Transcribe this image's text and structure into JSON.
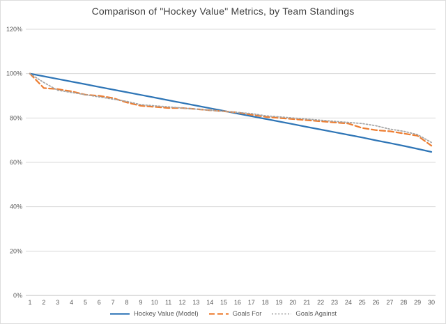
{
  "chart_data": {
    "type": "line",
    "title": "Comparison of \"Hockey Value\" Metrics, by Team Standings",
    "xlabel": "",
    "ylabel": "",
    "x": [
      1,
      2,
      3,
      4,
      5,
      6,
      7,
      8,
      9,
      10,
      11,
      12,
      13,
      14,
      15,
      16,
      17,
      18,
      19,
      20,
      21,
      22,
      23,
      24,
      25,
      26,
      27,
      28,
      29,
      30
    ],
    "ylim": [
      0,
      120
    ],
    "grid": true,
    "legend_position": "bottom",
    "grid_color": "#d9d9d9",
    "axis_color": "#bfbfbf",
    "tick_color": "#595959",
    "yticks": [
      {
        "value": 0,
        "label": "0%"
      },
      {
        "value": 20,
        "label": "20%"
      },
      {
        "value": 40,
        "label": "40%"
      },
      {
        "value": 60,
        "label": "60%"
      },
      {
        "value": 80,
        "label": "80%"
      },
      {
        "value": 100,
        "label": "100%"
      },
      {
        "value": 120,
        "label": "120%"
      }
    ],
    "series": [
      {
        "name": "Hockey Value (Model)",
        "color": "#2e75b6",
        "style": "solid",
        "width": 2.25,
        "values": [
          100,
          98.8,
          97.6,
          96.4,
          95.2,
          94.0,
          92.8,
          91.6,
          90.4,
          89.2,
          88.0,
          86.8,
          85.6,
          84.4,
          83.2,
          82.0,
          80.8,
          79.6,
          78.4,
          77.2,
          76.0,
          74.8,
          73.6,
          72.4,
          71.2,
          69.9,
          68.7,
          67.4,
          66.1,
          64.7
        ]
      },
      {
        "name": "Goals For",
        "color": "#ed7d31",
        "style": "dashed",
        "width": 2.25,
        "values": [
          100,
          93.5,
          93.0,
          92.0,
          90.5,
          90.0,
          89.0,
          87.0,
          85.5,
          85.0,
          84.5,
          84.5,
          84.0,
          83.5,
          83.0,
          82.5,
          81.5,
          80.5,
          80.0,
          79.5,
          79.0,
          78.5,
          78.0,
          77.5,
          75.5,
          74.5,
          74.0,
          73.0,
          72.0,
          67.5
        ]
      },
      {
        "name": "Goals Against",
        "color": "#a5a5a5",
        "style": "dotted",
        "width": 1.75,
        "values": [
          100,
          96.0,
          92.5,
          91.5,
          90.5,
          89.5,
          88.5,
          87.5,
          86.0,
          85.5,
          85.0,
          84.5,
          84.0,
          83.5,
          83.0,
          82.5,
          82.0,
          81.0,
          80.5,
          80.0,
          79.5,
          79.0,
          78.5,
          78.0,
          77.5,
          76.5,
          75.0,
          74.0,
          72.5,
          69.0
        ]
      }
    ]
  }
}
